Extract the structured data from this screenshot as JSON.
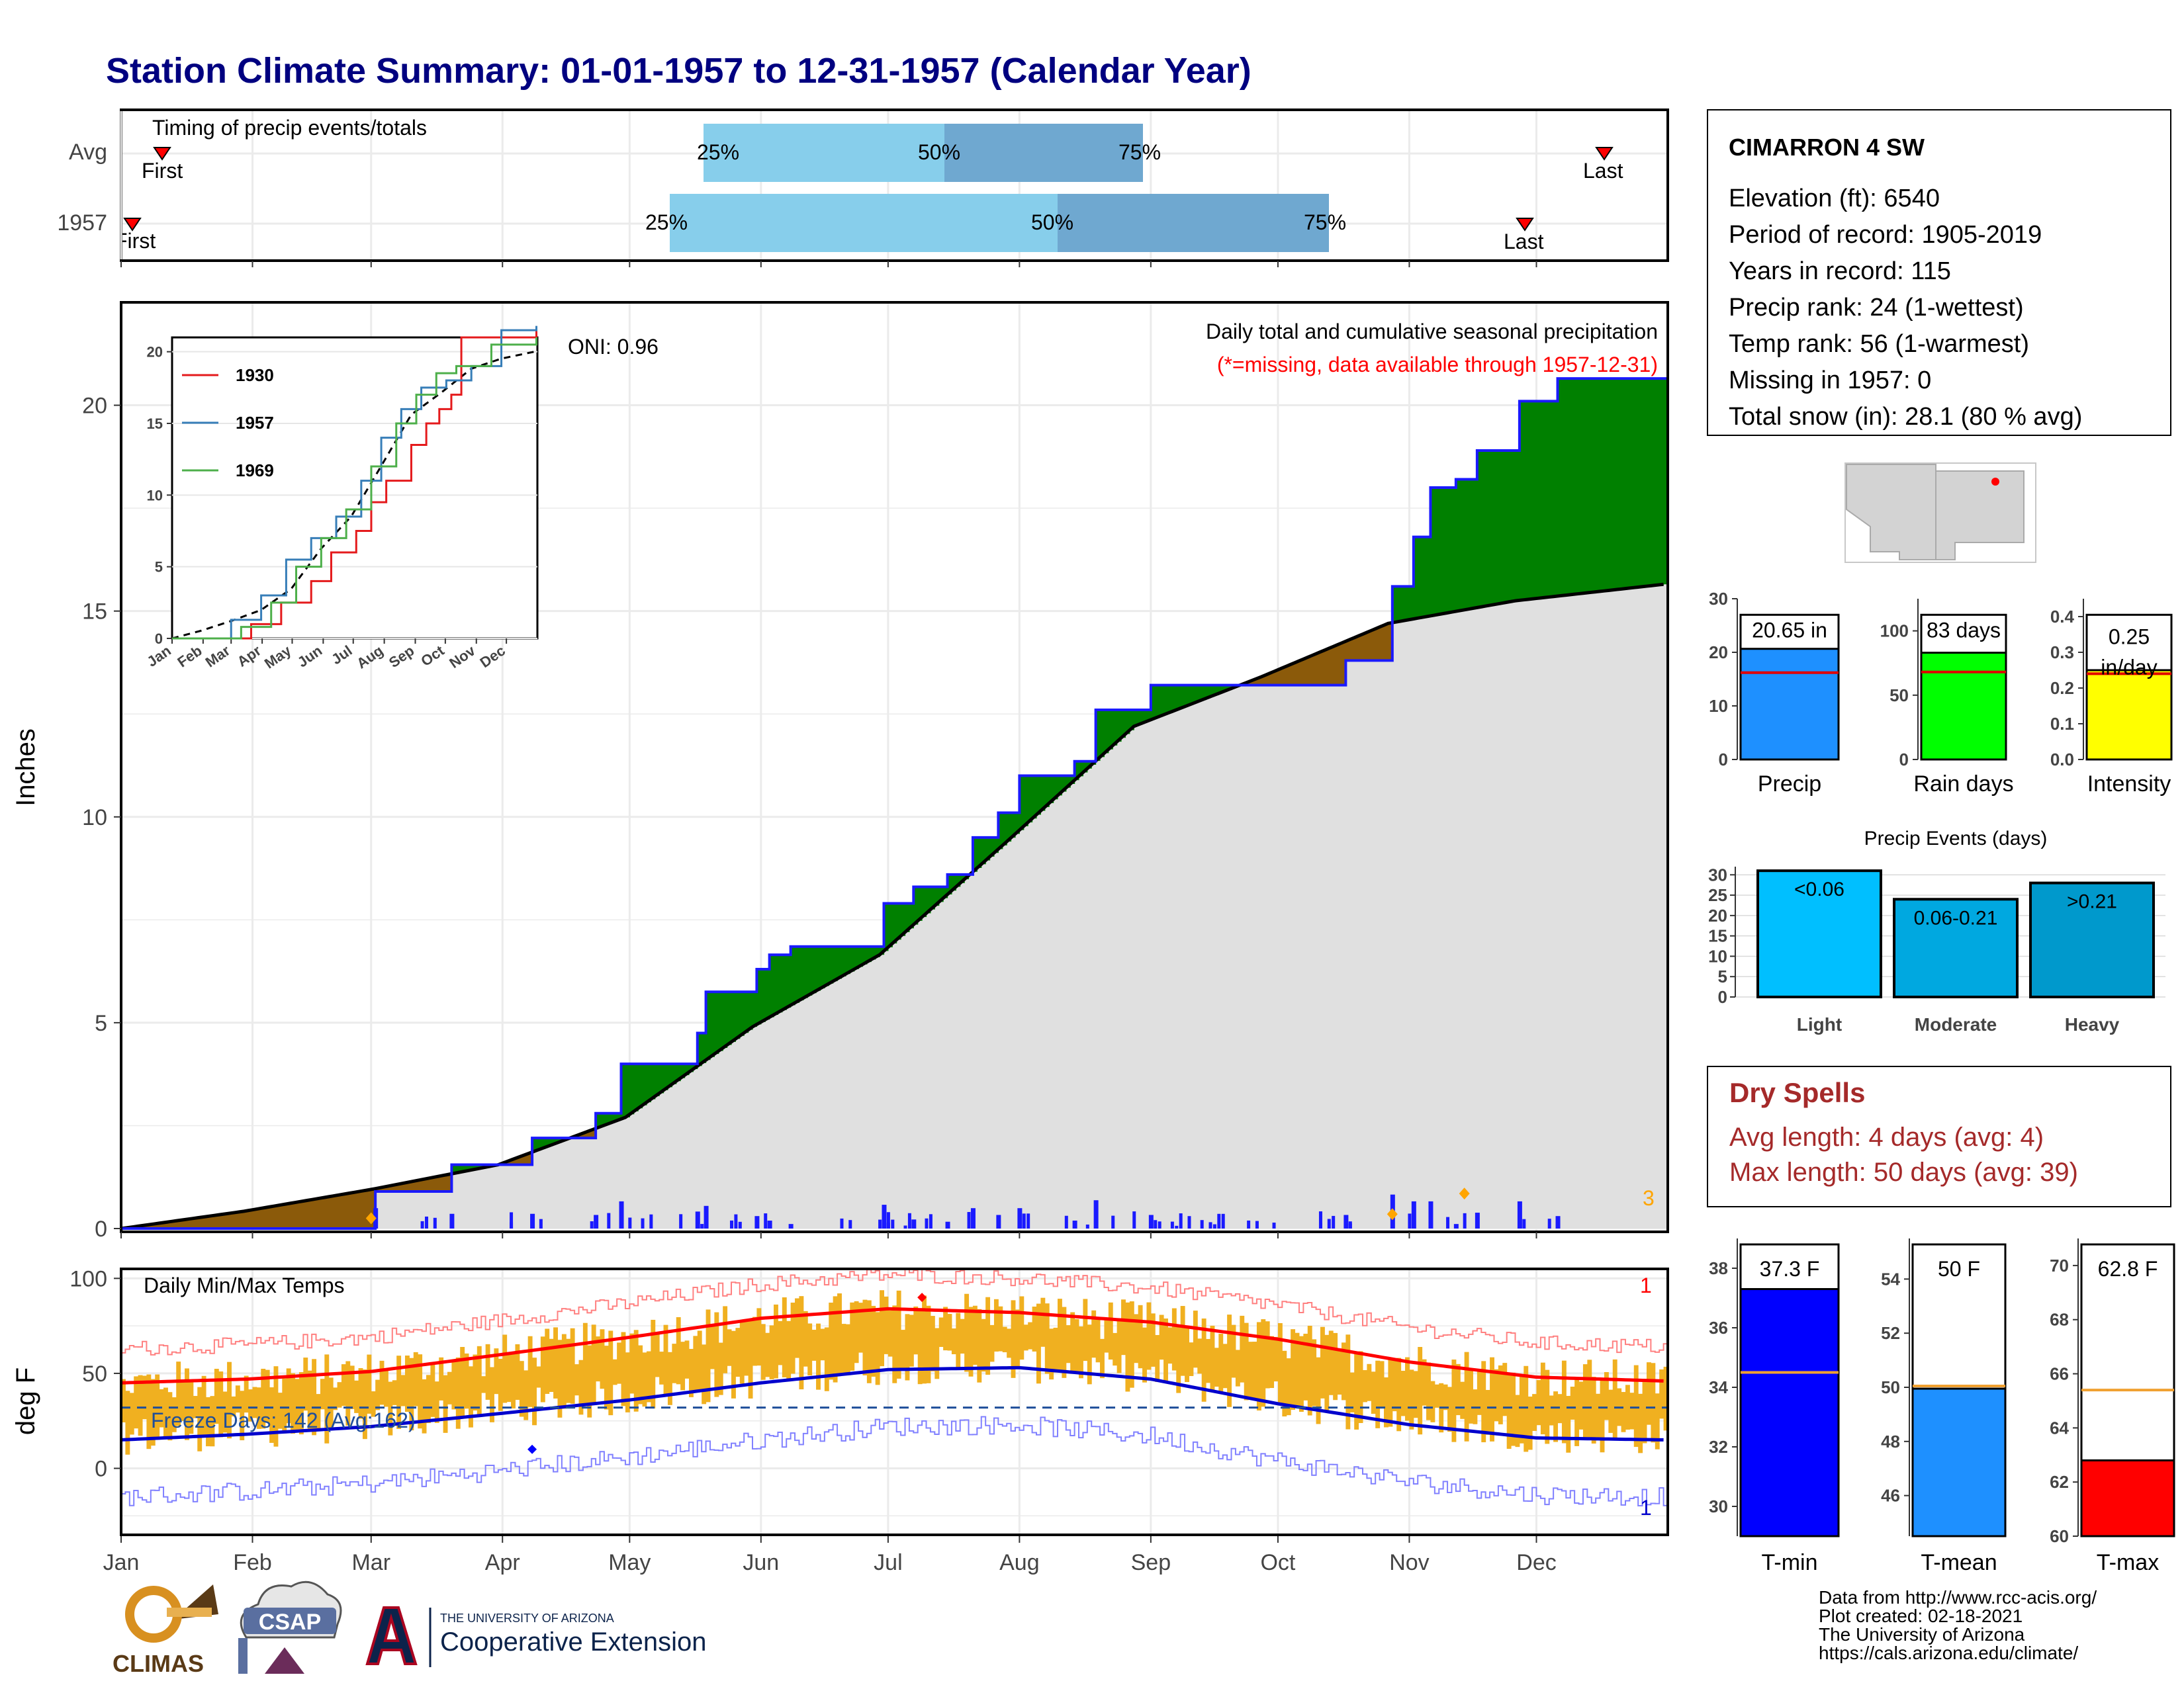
{
  "title": "Station Climate Summary: 01-01-1957 to 12-31-1957 (Calendar Year)",
  "colors": {
    "title": "#000080",
    "precip_above": "#008000",
    "precip_below": "#8b5a0a",
    "normal_fill": "#e0e0e0",
    "tmax_line": "#ff0000",
    "tmin_line": "#0000cc",
    "temp_bars": "#f0b020",
    "dry_spells": "#a52a2a"
  },
  "timing": {
    "title": "Timing of precip events/totals",
    "rows": [
      {
        "label": "Avg",
        "first": "First",
        "last": "Last",
        "p25": "25%",
        "p50": "50%",
        "p75": "75%"
      },
      {
        "label": "1957",
        "first": "First",
        "last": "Last",
        "p25": "25%",
        "p50": "50%",
        "p75": "75%"
      }
    ]
  },
  "precip_panel": {
    "ylabel": "Inches",
    "oni": "ONI: 0.96",
    "subtitle": "Daily total and cumulative seasonal precipitation",
    "missing_note": "(*=missing, data available through 1957-12-31)",
    "corner_count": "3",
    "yticks": [
      "0",
      "5",
      "10",
      "15",
      "20"
    ],
    "inset": {
      "yticks": [
        "0",
        "5",
        "10",
        "15",
        "20"
      ],
      "months": [
        "Jan",
        "Feb",
        "Mar",
        "Apr",
        "May",
        "Jun",
        "Jul",
        "Aug",
        "Sep",
        "Oct",
        "Nov",
        "Dec"
      ],
      "legend": [
        {
          "name": "1930",
          "color": "#e41a1c"
        },
        {
          "name": "1957",
          "color": "#377eb8"
        },
        {
          "name": "1969",
          "color": "#4daf4a"
        }
      ]
    }
  },
  "temp_panel": {
    "ylabel": "deg F",
    "title": "Daily Min/Max Temps",
    "freeze": "Freeze Days: 142 (Avg:162)",
    "top_count": "1",
    "bottom_count": "1",
    "yticks": [
      "0",
      "50",
      "100"
    ]
  },
  "months": [
    "Jan",
    "Feb",
    "Mar",
    "Apr",
    "May",
    "Jun",
    "Jul",
    "Aug",
    "Sep",
    "Oct",
    "Nov",
    "Dec"
  ],
  "station": {
    "name": "CIMARRON 4 SW",
    "lines": [
      "Elevation (ft): 6540",
      "Period of record: 1905-2019",
      "Years in record: 115",
      "Precip rank: 24 (1-wettest)",
      "Temp rank: 56 (1-warmest)",
      "Missing in 1957: 0",
      "Total snow (in): 28.1 (80 % avg)"
    ]
  },
  "mini_bars": [
    {
      "label": "Precip",
      "value_text": "20.65 in",
      "value": 20.65,
      "avg": 16.2,
      "ymax": 30,
      "yticks": [
        "0",
        "10",
        "20",
        "30"
      ],
      "color": "#1e90ff"
    },
    {
      "label": "Rain days",
      "value_text": "83 days",
      "value": 83,
      "avg": 68,
      "ymax": 125,
      "yticks": [
        "0",
        "50",
        "100"
      ],
      "color": "#00ff00"
    },
    {
      "label": "Intensity",
      "value_text": "0.25 in/day",
      "value_line1": "0.25",
      "value_line2": "in/day",
      "value": 0.25,
      "avg": 0.24,
      "ymax": 0.45,
      "yticks": [
        "0.0",
        "0.1",
        "0.2",
        "0.3",
        "0.4"
      ],
      "color": "#ffff00"
    }
  ],
  "precip_events": {
    "title": "Precip Events (days)",
    "yticks": [
      "0",
      "5",
      "10",
      "15",
      "20",
      "25",
      "30"
    ],
    "bars": [
      {
        "label": "Light",
        "range": "<0.06",
        "value": 31,
        "color": "#00bfff"
      },
      {
        "label": "Moderate",
        "range": "0.06-0.21",
        "value": 24,
        "color": "#00a8e0"
      },
      {
        "label": "Heavy",
        "range": ">0.21",
        "value": 28,
        "color": "#0099cc"
      }
    ]
  },
  "dry_spells": {
    "title": "Dry Spells",
    "avg_line": "Avg length: 4 days (avg: 4)",
    "max_line": "Max length: 50 days (avg: 39)"
  },
  "temp_bars": [
    {
      "label": "T-min",
      "value_text": "37.3 F",
      "value": 37.3,
      "avg": 34.5,
      "ymin": 29,
      "ymax": 39,
      "yticks": [
        "30",
        "32",
        "34",
        "36",
        "38"
      ],
      "color": "#0000ff"
    },
    {
      "label": "T-mean",
      "value_text": "50 F",
      "value": 49.95,
      "avg": 50.05,
      "ymin": 44.5,
      "ymax": 55.5,
      "yticks": [
        "46",
        "48",
        "50",
        "52",
        "54"
      ],
      "color": "#1e90ff"
    },
    {
      "label": "T-max",
      "value_text": "62.8 F",
      "value": 62.8,
      "avg": 65.4,
      "ymin": 60,
      "ymax": 71,
      "yticks": [
        "60",
        "62",
        "64",
        "66",
        "68",
        "70"
      ],
      "color": "#ff0000"
    }
  ],
  "chart_data": [
    {
      "type": "area",
      "title": "Daily total and cumulative seasonal precipitation",
      "ylabel": "Inches",
      "ylim": [
        0,
        22.5
      ],
      "x_month_labels": [
        "Jan",
        "Feb",
        "Mar",
        "Apr",
        "May",
        "Jun",
        "Jul",
        "Aug",
        "Sep",
        "Oct",
        "Nov",
        "Dec"
      ],
      "series": [
        {
          "name": "1957 cumulative",
          "x_day": [
            1,
            60,
            61,
            78,
            79,
            97,
            98,
            112,
            113,
            118,
            119,
            136,
            137,
            138,
            139,
            150,
            151,
            153,
            154,
            158,
            159,
            180,
            181,
            187,
            188,
            195,
            196,
            201,
            202,
            206,
            208,
            212,
            213,
            225,
            226,
            230,
            231,
            243,
            244,
            255,
            258,
            269,
            275,
            289,
            290,
            300,
            301,
            305,
            306,
            308,
            310,
            315,
            316,
            320,
            321,
            330,
            331,
            335,
            340,
            365
          ],
          "y": [
            0,
            0,
            0.9,
            0.9,
            1.55,
            1.55,
            2.2,
            2.2,
            2.8,
            2.8,
            4.0,
            4.0,
            4.75,
            4.75,
            5.75,
            5.75,
            6.3,
            6.3,
            6.65,
            6.65,
            6.85,
            6.85,
            7.9,
            7.9,
            8.3,
            8.3,
            8.6,
            8.6,
            9.5,
            9.5,
            10.1,
            10.1,
            11.0,
            11.0,
            11.35,
            11.35,
            12.6,
            12.6,
            13.2,
            13.2,
            13.2,
            13.2,
            13.2,
            13.2,
            13.8,
            13.8,
            15.6,
            15.6,
            16.8,
            16.8,
            18.0,
            18.0,
            18.2,
            18.2,
            18.9,
            18.9,
            20.1,
            20.1,
            20.65,
            20.65
          ]
        },
        {
          "name": "Normal cumulative",
          "x_day": [
            1,
            30,
            60,
            90,
            120,
            150,
            180,
            210,
            240,
            270,
            300,
            330,
            365
          ],
          "y": [
            0,
            0.42,
            0.95,
            1.55,
            2.7,
            4.9,
            6.65,
            9.4,
            12.2,
            13.4,
            14.7,
            15.25,
            15.65
          ]
        }
      ]
    },
    {
      "type": "line",
      "title": "Daily Min/Max Temps",
      "ylabel": "deg F",
      "ylim": [
        -35,
        105
      ],
      "x_month_labels": [
        "Jan",
        "Feb",
        "Mar",
        "Apr",
        "May",
        "Jun",
        "Jul",
        "Aug",
        "Sep",
        "Oct",
        "Nov",
        "Dec"
      ],
      "series": [
        {
          "name": "Normal max",
          "x_day": [
            1,
            31,
            60,
            91,
            121,
            152,
            182,
            213,
            244,
            274,
            305,
            335,
            365
          ],
          "y": [
            45,
            47,
            51,
            60,
            69,
            79,
            84,
            82,
            77,
            68,
            56,
            48,
            46
          ]
        },
        {
          "name": "Normal min",
          "x_day": [
            1,
            31,
            60,
            91,
            121,
            152,
            182,
            213,
            244,
            274,
            305,
            335,
            365
          ],
          "y": [
            15,
            18,
            22,
            29,
            36,
            45,
            52,
            53,
            47,
            34,
            23,
            16,
            15
          ]
        },
        {
          "name": "Freeze line",
          "x_day": [
            1,
            365
          ],
          "y": [
            32,
            32
          ]
        }
      ]
    },
    {
      "type": "bar",
      "title": "Precip Events (days)",
      "categories": [
        "Light",
        "Moderate",
        "Heavy"
      ],
      "values": [
        31,
        24,
        28
      ],
      "ylim": [
        0,
        32
      ]
    }
  ],
  "footer": {
    "logos": {
      "climas": "CLIMAS",
      "csap": "CSAP",
      "ua_line1": "THE UNIVERSITY OF ARIZONA",
      "ua_line2": "Cooperative Extension"
    },
    "credits": [
      "Data from http://www.rcc-acis.org/",
      "Plot created: 02-18-2021",
      "The University of Arizona",
      "https://cals.arizona.edu/climate/"
    ]
  }
}
